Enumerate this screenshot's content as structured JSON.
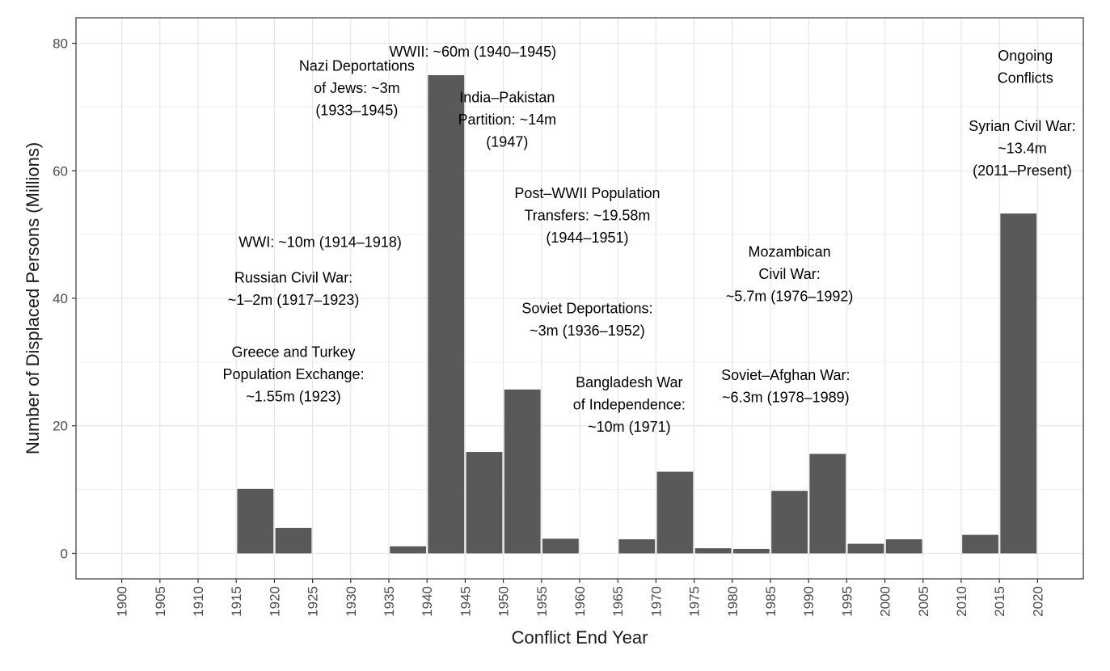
{
  "chart_data": {
    "type": "bar",
    "title": "",
    "xlabel": "Conflict End Year",
    "ylabel": "Number of Displaced Persons (Millions)",
    "xlim": [
      1894,
      2026
    ],
    "ylim": [
      -4,
      84
    ],
    "x_ticks": [
      1900,
      1905,
      1910,
      1915,
      1920,
      1925,
      1930,
      1935,
      1940,
      1945,
      1950,
      1955,
      1960,
      1965,
      1970,
      1975,
      1980,
      1985,
      1990,
      1995,
      2000,
      2005,
      2010,
      2015,
      2020
    ],
    "y_ticks": [
      0,
      20,
      40,
      60,
      80
    ],
    "grid": true,
    "bar_color": "#595959",
    "bars": [
      {
        "start": 1915,
        "end": 1920,
        "value": 10.1
      },
      {
        "start": 1920,
        "end": 1925,
        "value": 4.0
      },
      {
        "start": 1935,
        "end": 1940,
        "value": 1.1
      },
      {
        "start": 1940,
        "end": 1945,
        "value": 75.0
      },
      {
        "start": 1945,
        "end": 1950,
        "value": 15.9
      },
      {
        "start": 1950,
        "end": 1955,
        "value": 25.7
      },
      {
        "start": 1955,
        "end": 1960,
        "value": 2.3
      },
      {
        "start": 1965,
        "end": 1970,
        "value": 2.2
      },
      {
        "start": 1970,
        "end": 1975,
        "value": 12.8
      },
      {
        "start": 1975,
        "end": 1980,
        "value": 0.8
      },
      {
        "start": 1980,
        "end": 1985,
        "value": 0.7
      },
      {
        "start": 1985,
        "end": 1990,
        "value": 9.8
      },
      {
        "start": 1990,
        "end": 1995,
        "value": 15.6
      },
      {
        "start": 1995,
        "end": 2000,
        "value": 1.5
      },
      {
        "start": 2000,
        "end": 2005,
        "value": 2.2
      },
      {
        "start": 2010,
        "end": 2015,
        "value": 2.9
      },
      {
        "start": 2015,
        "end": 2020,
        "value": 53.3
      }
    ],
    "annotations": [
      {
        "x": 1926.0,
        "y": 48.8,
        "lines": [
          "WWI: ~10m (1914–1918)"
        ]
      },
      {
        "x": 1922.5,
        "y": 41.5,
        "lines": [
          "Russian Civil War:",
          "~1–2m (1917–1923)"
        ]
      },
      {
        "x": 1922.5,
        "y": 28.1,
        "lines": [
          "Greece and Turkey",
          "Population Exchange:",
          "~1.55m (1923)"
        ]
      },
      {
        "x": 1930.8,
        "y": 73.0,
        "lines": [
          "Nazi Deportations",
          "of Jews: ~3m",
          "(1933–1945)"
        ]
      },
      {
        "x": 1946.0,
        "y": 78.7,
        "lines": [
          "WWII: ~60m (1940–1945)"
        ]
      },
      {
        "x": 1950.5,
        "y": 68.0,
        "lines": [
          "India–Pakistan",
          "Partition: ~14m",
          "(1947)"
        ]
      },
      {
        "x": 1961.0,
        "y": 53.0,
        "lines": [
          "Post–WWII Population",
          "Transfers: ~19.58m",
          "(1944–1951)"
        ]
      },
      {
        "x": 1961.0,
        "y": 36.7,
        "lines": [
          "Soviet Deportations:",
          "~3m (1936–1952)"
        ]
      },
      {
        "x": 1966.5,
        "y": 23.3,
        "lines": [
          "Bangladesh War",
          "of Independence:",
          "~10m (1971)"
        ]
      },
      {
        "x": 1987.5,
        "y": 43.8,
        "lines": [
          "Mozambican",
          "Civil War:",
          "~5.7m (1976–1992)"
        ]
      },
      {
        "x": 1987.0,
        "y": 26.2,
        "lines": [
          "Soviet–Afghan War:",
          "~6.3m (1978–1989)"
        ]
      },
      {
        "x": 2018.4,
        "y": 76.3,
        "lines": [
          "Ongoing",
          "Conflicts"
        ]
      },
      {
        "x": 2018.0,
        "y": 63.5,
        "lines": [
          "Syrian Civil War:",
          "~13.4m",
          "(2011–Present)"
        ]
      }
    ]
  }
}
